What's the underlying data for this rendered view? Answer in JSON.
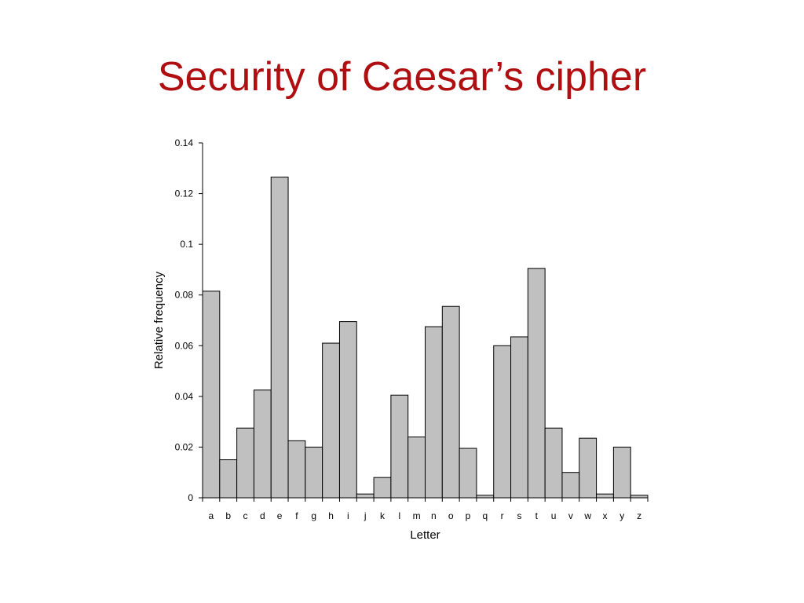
{
  "slide": {
    "title": "Security of Caesar’s cipher"
  },
  "chart_data": {
    "type": "bar",
    "categories": [
      "a",
      "b",
      "c",
      "d",
      "e",
      "f",
      "g",
      "h",
      "i",
      "j",
      "k",
      "l",
      "m",
      "n",
      "o",
      "p",
      "q",
      "r",
      "s",
      "t",
      "u",
      "v",
      "w",
      "x",
      "y",
      "z"
    ],
    "values": [
      0.0815,
      0.015,
      0.0275,
      0.0425,
      0.1265,
      0.0225,
      0.02,
      0.061,
      0.0695,
      0.0015,
      0.008,
      0.0405,
      0.024,
      0.0675,
      0.0755,
      0.0195,
      0.001,
      0.06,
      0.0635,
      0.0905,
      0.0275,
      0.01,
      0.0235,
      0.0015,
      0.02,
      0.001
    ],
    "xlabel": "Letter",
    "ylabel": "Relative frequency",
    "ylim": [
      0,
      0.14
    ],
    "yticks": [
      0,
      0.02,
      0.04,
      0.06,
      0.08,
      0.1,
      0.12,
      0.14
    ],
    "ytick_labels": [
      "0",
      "0.02",
      "0.04",
      "0.06",
      "0.08",
      "0.1",
      "0.12",
      "0.14"
    ],
    "grid": false,
    "bar_color": "#c0c0c0",
    "bar_edge_color": "#000000"
  }
}
